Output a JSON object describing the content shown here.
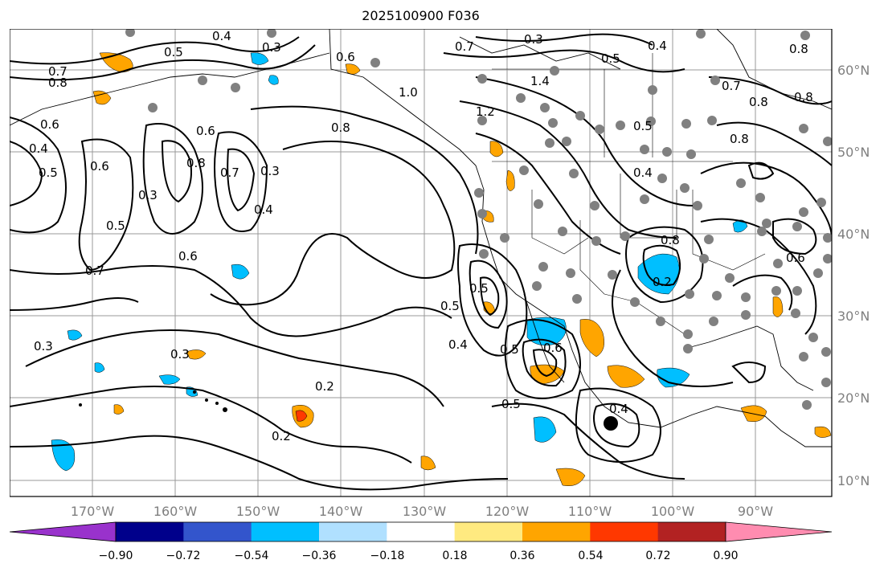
{
  "title": "2025100900 F036",
  "lat_labels": [
    "60°N",
    "50°N",
    "40°N",
    "30°N",
    "20°N",
    "10°N"
  ],
  "lon_labels": [
    "170°W",
    "160°W",
    "150°W",
    "140°W",
    "130°W",
    "120°W",
    "110°W",
    "100°W",
    "90°W"
  ],
  "colorbar": {
    "ticks": [
      "−0.90",
      "−0.72",
      "−0.54",
      "−0.36",
      "−0.18",
      "0.18",
      "0.36",
      "0.54",
      "0.72",
      "0.90"
    ],
    "colors": [
      "#9932cc",
      "#00008b",
      "#3355cc",
      "#00bfff",
      "#b0e0ff",
      "#ffffff",
      "#ffea80",
      "#ffa500",
      "#ff3800",
      "#b22222",
      "#ff8cb0"
    ]
  },
  "contour_labels": [
    "0.7",
    "0.8",
    "0.5",
    "0.4",
    "0.3",
    "0.6",
    "0.4",
    "0.5",
    "0.6",
    "0.8",
    "0.3",
    "0.2",
    "0.5",
    "0.4",
    "0.3",
    "0.6",
    "0.7",
    "0.5",
    "0.3",
    "0.6",
    "0.8",
    "1.0",
    "1.2",
    "1.4",
    "0.3",
    "0.5",
    "0.7",
    "0.4",
    "0.8",
    "0.5",
    "0.4",
    "0.7",
    "0.8",
    "0.6",
    "0.5",
    "0.4",
    "0.5",
    "0.2",
    "0.3",
    "0.2",
    "0.3",
    "0.5",
    "0.4",
    "0.4",
    "0.8",
    "0.6",
    "0.7",
    "0.8"
  ]
}
